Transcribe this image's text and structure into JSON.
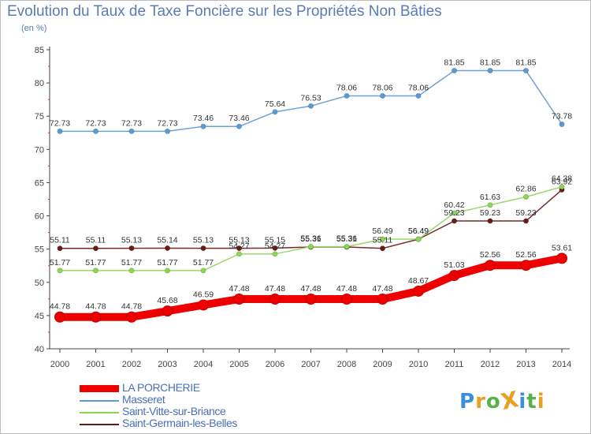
{
  "title": "Evolution du Taux de Taxe Foncière sur les Propriétés Non Bâties",
  "subtitle": "(en %)",
  "logo": {
    "text": "ProXiti",
    "letters": [
      "P",
      "r",
      "o",
      "X",
      "i",
      "t",
      "i"
    ],
    "colors": [
      "#3a8fd8",
      "#e8a020",
      "#5ab04a",
      "#e8a020",
      "#3a8fd8",
      "#5ab04a",
      "#e8a020"
    ]
  },
  "legend": [
    {
      "name": "LA PORCHERIE",
      "color": "#ee0000"
    },
    {
      "name": "Masseret",
      "color": "#5b9bd5"
    },
    {
      "name": "Saint-Vitte-sur-Briance",
      "color": "#8ad84f"
    },
    {
      "name": "Saint-Germain-les-Belles",
      "color": "#6b1a1a"
    }
  ],
  "chart_data": {
    "type": "line",
    "title": "Evolution du Taux de Taxe Foncière sur les Propriétés Non Bâties",
    "ylabel": "(en %)",
    "ylim": [
      40,
      85
    ],
    "yticks": [
      40,
      45,
      50,
      55,
      60,
      65,
      70,
      75,
      80,
      85
    ],
    "grid": false,
    "x": [
      "2000",
      "2001",
      "2002",
      "2003",
      "2004",
      "2005",
      "2006",
      "2007",
      "2008",
      "2009",
      "2010",
      "2011",
      "2012",
      "2013",
      "2014"
    ],
    "series": [
      {
        "name": "Masseret",
        "color": "#5b9bd5",
        "line_color": "#6ea3d8",
        "values": [
          72.73,
          72.73,
          72.73,
          72.73,
          73.46,
          73.46,
          75.64,
          76.53,
          78.06,
          78.06,
          78.06,
          81.85,
          81.85,
          81.85,
          73.78
        ],
        "labels": [
          "72.73",
          "72.73",
          "72.73",
          "72.73",
          "73.46",
          "73.46",
          "75.64",
          "76.53",
          "78.06",
          "78.06",
          "78.06",
          "81.85",
          "81.85",
          "81.85",
          "73.78"
        ]
      },
      {
        "name": "Saint-Germain-les-Belles",
        "color": "#6b1a1a",
        "line_color": "#7a2a2a",
        "values": [
          55.11,
          55.11,
          55.13,
          55.14,
          55.13,
          55.13,
          55.15,
          55.31,
          55.31,
          55.11,
          56.49,
          59.23,
          59.23,
          59.23,
          63.92
        ],
        "labels": [
          "55.11",
          "55.11",
          "55.13",
          "55.14",
          "55.13",
          "55.13",
          "55.15",
          "55.31",
          "55.31",
          "55.11",
          "56.49",
          "59.23",
          "59.23",
          "59.23",
          "63.92"
        ]
      },
      {
        "name": "Saint-Vitte-sur-Briance",
        "color": "#8ad84f",
        "line_color": "#9ad86a",
        "values": [
          51.77,
          51.77,
          51.77,
          51.77,
          51.77,
          54.27,
          54.27,
          55.36,
          55.36,
          56.49,
          56.49,
          60.42,
          61.63,
          62.86,
          64.38
        ],
        "labels": [
          "51.77",
          "51.77",
          "51.77",
          "51.77",
          "51.77",
          "54.27",
          "54.27",
          "55.36",
          "55.36",
          "56.49",
          "56.49",
          "60.42",
          "61.63",
          "62.86",
          "64.38"
        ]
      },
      {
        "name": "LA PORCHERIE",
        "color": "#ee0000",
        "line_color": "#ee0000",
        "values": [
          44.78,
          44.78,
          44.78,
          45.68,
          46.59,
          47.48,
          47.48,
          47.48,
          47.48,
          47.48,
          48.67,
          51.03,
          52.56,
          52.56,
          53.61
        ],
        "labels": [
          "44.78",
          "44.78",
          "44.78",
          "45.68",
          "46.59",
          "47.48",
          "47.48",
          "47.48",
          "47.48",
          "47.48",
          "48.67",
          "51.03",
          "52.56",
          "52.56",
          "53.61"
        ]
      }
    ]
  }
}
